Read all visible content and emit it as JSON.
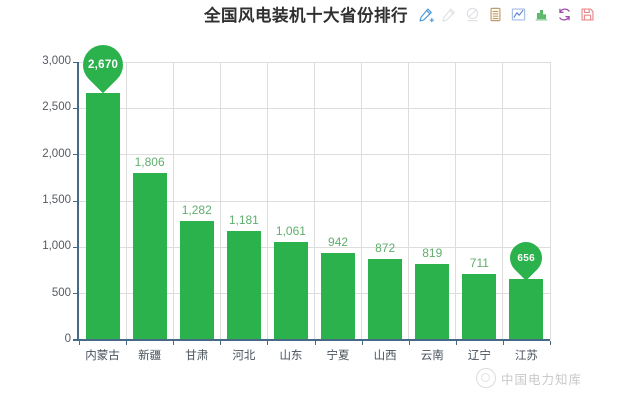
{
  "header": {
    "title": "全国风电装机十大省份排行",
    "toolbar_icons": [
      {
        "name": "edit-pencil-icon",
        "color": "#4f96d8",
        "disabled": false
      },
      {
        "name": "pencil-icon",
        "color": "#c4c8cf",
        "disabled": true
      },
      {
        "name": "stamp-icon",
        "color": "#c4c8cf",
        "disabled": true
      },
      {
        "name": "data-view-icon",
        "color": "#c69a66",
        "disabled": false
      },
      {
        "name": "line-chart-icon",
        "color": "#5b87cf",
        "disabled": false
      },
      {
        "name": "bar-chart-icon",
        "color": "#5cb86a",
        "disabled": false
      },
      {
        "name": "refresh-icon",
        "color": "#9d4ea8",
        "disabled": false
      },
      {
        "name": "save-icon",
        "color": "#e98a8a",
        "disabled": false
      }
    ]
  },
  "chart_data": {
    "type": "bar",
    "title": "全国风电装机十大省份排行",
    "categories": [
      "内蒙古",
      "新疆",
      "甘肃",
      "河北",
      "山东",
      "宁夏",
      "山西",
      "云南",
      "辽宁",
      "江苏"
    ],
    "values": [
      2670,
      1806,
      1282,
      1181,
      1061,
      942,
      872,
      819,
      711,
      656
    ],
    "value_labels": [
      "2,670",
      "1,806",
      "1,282",
      "1,181",
      "1,061",
      "942",
      "872",
      "819",
      "711",
      "656"
    ],
    "xlabel": "",
    "ylabel": "",
    "ylim": [
      0,
      3000
    ],
    "ytick_step": 500,
    "ytick_labels": [
      "0",
      "500",
      "1,000",
      "1,500",
      "2,000",
      "2,500",
      "3,000"
    ],
    "grid": true,
    "legend": false,
    "bar_color": "#2bb24c",
    "axis_color": "#466a85",
    "label_color": "#5fae6d",
    "max_marker": {
      "index": 0,
      "label": "2,670"
    },
    "min_marker": {
      "index": 9,
      "label": "656"
    }
  },
  "watermark": {
    "text": "中国电力知库"
  }
}
